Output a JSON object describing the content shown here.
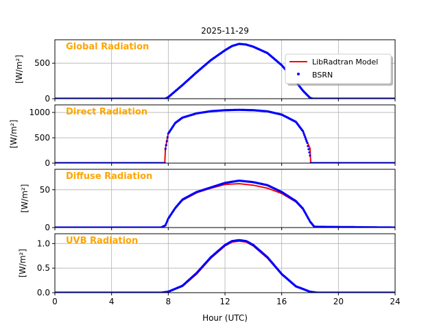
{
  "figure": {
    "title": "2025-11-29",
    "xlabel": "Hour (UTC)",
    "xlim": [
      0,
      24
    ],
    "xticks": [
      0,
      4,
      8,
      12,
      16,
      20,
      24
    ],
    "colors": {
      "model": "#ff0000",
      "obs": "#0000ff",
      "label": "#ffa500",
      "grid": "#b0b0b0"
    }
  },
  "legend": {
    "placement": "top-right of first panel",
    "entries": [
      {
        "label": "LibRadtran Model",
        "style": "line",
        "color": "#ff0000"
      },
      {
        "label": "BSRN",
        "style": "marker",
        "color": "#0000ff"
      }
    ]
  },
  "chart_data": [
    {
      "type": "line",
      "title": "Global Radiation",
      "ylabel": "[W/m²]",
      "ylim": [
        0,
        830
      ],
      "yticks": [
        0,
        500
      ],
      "x": [
        0,
        7.8,
        8,
        9,
        10,
        11,
        12,
        12.5,
        13,
        13.5,
        14,
        15,
        16,
        17,
        17.5,
        18,
        18.2,
        24
      ],
      "series": [
        {
          "name": "LibRadtran Model",
          "values": [
            0,
            0,
            20,
            190,
            370,
            540,
            680,
            740,
            770,
            760,
            730,
            640,
            470,
            240,
            110,
            10,
            0,
            0
          ]
        },
        {
          "name": "BSRN",
          "values": [
            0,
            0,
            22,
            192,
            372,
            542,
            682,
            742,
            772,
            762,
            732,
            642,
            472,
            242,
            112,
            12,
            0,
            0
          ]
        }
      ]
    },
    {
      "type": "line",
      "title": "Direct Radiation",
      "ylabel": "[W/m²]",
      "ylim": [
        0,
        1150
      ],
      "yticks": [
        0,
        500,
        1000
      ],
      "x": [
        0,
        7.75,
        7.8,
        8,
        8.5,
        9,
        10,
        11,
        12,
        13,
        14,
        15,
        16,
        17,
        17.5,
        17.8,
        18,
        18.05,
        24
      ],
      "series": [
        {
          "name": "LibRadtran Model",
          "values": [
            0,
            0,
            290,
            590,
            800,
            900,
            980,
            1020,
            1040,
            1050,
            1040,
            1020,
            960,
            820,
            640,
            420,
            290,
            0,
            0
          ]
        },
        {
          "name": "BSRN",
          "values": [
            0,
            0,
            280,
            585,
            795,
            898,
            982,
            1025,
            1045,
            1052,
            1045,
            1022,
            958,
            815,
            630,
            400,
            150,
            0,
            0
          ]
        }
      ]
    },
    {
      "type": "line",
      "title": "Diffuse Radiation",
      "ylabel": "[W/m²]",
      "ylim": [
        0,
        77
      ],
      "yticks": [
        0,
        50
      ],
      "x": [
        0,
        7.5,
        7.8,
        8,
        8.5,
        9,
        10,
        11,
        12,
        13,
        14,
        15,
        16,
        17,
        17.5,
        18,
        18.3,
        24
      ],
      "series": [
        {
          "name": "LibRadtran Model",
          "values": [
            0,
            0,
            3,
            12,
            26,
            36,
            46,
            52,
            57,
            58,
            56,
            52,
            45,
            34,
            24,
            8,
            1,
            0
          ]
        },
        {
          "name": "BSRN",
          "values": [
            0,
            0,
            3,
            12,
            26,
            37,
            47,
            53,
            59,
            62,
            60,
            56,
            47,
            35,
            25,
            8,
            1,
            0
          ]
        }
      ]
    },
    {
      "type": "line",
      "title": "UVB Radiation",
      "ylabel": "[W/m²]",
      "ylim": [
        0,
        1.2
      ],
      "yticks": [
        0,
        0.5,
        1.0
      ],
      "x": [
        0,
        7.5,
        8,
        9,
        10,
        11,
        12,
        12.5,
        13,
        13.5,
        14,
        15,
        16,
        17,
        18,
        18.5,
        24
      ],
      "series": [
        {
          "name": "LibRadtran Model",
          "values": [
            0,
            0,
            0.02,
            0.13,
            0.38,
            0.7,
            0.95,
            1.03,
            1.05,
            1.03,
            0.95,
            0.7,
            0.37,
            0.12,
            0.02,
            0,
            0
          ]
        },
        {
          "name": "BSRN",
          "values": [
            0,
            0,
            0.02,
            0.14,
            0.4,
            0.72,
            0.97,
            1.05,
            1.07,
            1.05,
            0.97,
            0.72,
            0.38,
            0.13,
            0.02,
            0,
            0
          ]
        }
      ]
    }
  ]
}
